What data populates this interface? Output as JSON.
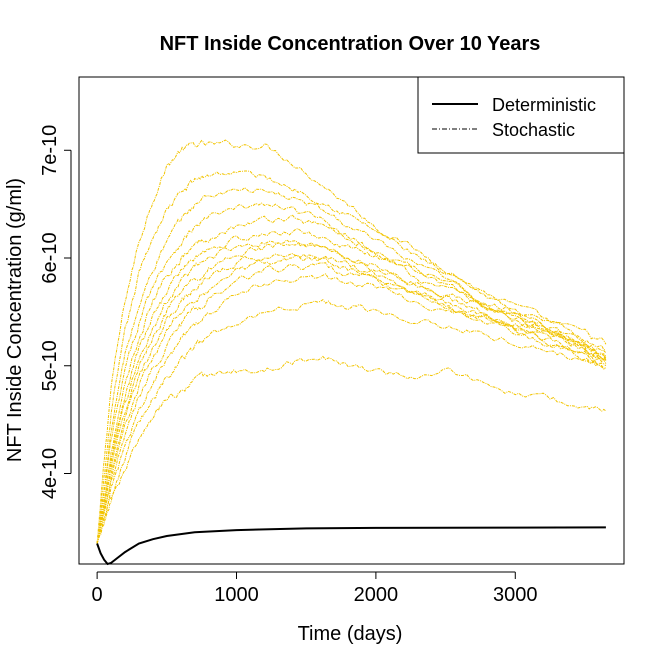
{
  "chart_data": {
    "type": "line",
    "title": "NFT Inside Concentration Over 10 Years",
    "xlabel": "Time (days)",
    "ylabel": "NFT Inside Concentration (g/ml)",
    "xlim": [
      -130,
      3780
    ],
    "ylim": [
      3.16e-10,
      7.68e-10
    ],
    "x_ticks": [
      0,
      1000,
      2000,
      3000
    ],
    "x_tick_labels": [
      "0",
      "1000",
      "2000",
      "3000"
    ],
    "y_ticks": [
      4e-10,
      5e-10,
      6e-10,
      7e-10
    ],
    "y_tick_labels": [
      "4e-10",
      "5e-10",
      "6e-10",
      "7e-10"
    ],
    "grid": false,
    "legend": {
      "placement": "top-right",
      "entries": [
        {
          "label": "Deterministic",
          "style": "solid",
          "color": "#000000"
        },
        {
          "label": "Stochastic",
          "style": "dot-dash",
          "color": "#000000"
        }
      ]
    },
    "colors": {
      "deterministic": "#000000",
      "stochastic": "#F2C400"
    },
    "deterministic": {
      "x": [
        0,
        25,
        50,
        75,
        100,
        150,
        200,
        300,
        400,
        500,
        700,
        1000,
        1500,
        2000,
        2500,
        3000,
        3650
      ],
      "y": [
        3.35e-10,
        3.26e-10,
        3.2e-10,
        3.16e-10,
        3.17e-10,
        3.22e-10,
        3.27e-10,
        3.35e-10,
        3.39e-10,
        3.42e-10,
        3.455e-10,
        3.475e-10,
        3.49e-10,
        3.495e-10,
        3.497e-10,
        3.498e-10,
        3.5e-10
      ]
    },
    "stochastic_series_x": [
      0,
      50,
      100,
      200,
      300,
      400,
      500,
      600,
      700,
      800,
      1000,
      1200,
      1400,
      1600,
      1800,
      2000,
      2250,
      2500,
      2750,
      3000,
      3250,
      3500,
      3650
    ],
    "stochastic_series": [
      {
        "values": [
          3.35e-10,
          4.1e-10,
          4.8e-10,
          5.6e-10,
          6.15e-10,
          6.55e-10,
          6.85e-10,
          7e-10,
          7.05e-10,
          7.05e-10,
          7.05e-10,
          7.05e-10,
          6.9e-10,
          6.7e-10,
          6.5e-10,
          6.3e-10,
          6.1e-10,
          5.9e-10,
          5.7e-10,
          5.55e-10,
          5.4e-10,
          5.3e-10,
          5.2e-10
        ]
      },
      {
        "values": [
          3.35e-10,
          3.95e-10,
          4.55e-10,
          5.3e-10,
          5.85e-10,
          6.2e-10,
          6.45e-10,
          6.6e-10,
          6.72e-10,
          6.78e-10,
          6.8e-10,
          6.75e-10,
          6.65e-10,
          6.55e-10,
          6.4e-10,
          6.25e-10,
          6.05e-10,
          5.85e-10,
          5.65e-10,
          5.5e-10,
          5.35e-10,
          5.2e-10,
          5.1e-10
        ]
      },
      {
        "values": [
          3.35e-10,
          3.85e-10,
          4.4e-10,
          5.1e-10,
          5.55e-10,
          5.9e-10,
          6.15e-10,
          6.35e-10,
          6.5e-10,
          6.58e-10,
          6.65e-10,
          6.62e-10,
          6.55e-10,
          6.45e-10,
          6.3e-10,
          6.15e-10,
          5.95e-10,
          5.8e-10,
          5.6e-10,
          5.45e-10,
          5.3e-10,
          5.15e-10,
          5.05e-10
        ]
      },
      {
        "values": [
          3.35e-10,
          3.8e-10,
          4.3e-10,
          4.95e-10,
          5.4e-10,
          5.75e-10,
          5.98e-10,
          6.15e-10,
          6.28e-10,
          6.38e-10,
          6.45e-10,
          6.5e-10,
          6.45e-10,
          6.35e-10,
          6.2e-10,
          6.05e-10,
          5.9e-10,
          5.75e-10,
          5.6e-10,
          5.45e-10,
          5.3e-10,
          5.2e-10,
          5.1e-10
        ]
      },
      {
        "values": [
          3.35e-10,
          3.75e-10,
          4.2e-10,
          4.8e-10,
          5.25e-10,
          5.6e-10,
          5.85e-10,
          6e-10,
          6.12e-10,
          6.2e-10,
          6.3e-10,
          6.35e-10,
          6.38e-10,
          6.3e-10,
          6.2e-10,
          6.05e-10,
          5.9e-10,
          5.78e-10,
          5.62e-10,
          5.5e-10,
          5.38e-10,
          5.25e-10,
          5.15e-10
        ]
      },
      {
        "values": [
          3.35e-10,
          3.72e-10,
          4.15e-10,
          4.7e-10,
          5.15e-10,
          5.45e-10,
          5.7e-10,
          5.88e-10,
          6e-10,
          6.08e-10,
          6.18e-10,
          6.2e-10,
          6.25e-10,
          6.2e-10,
          6.1e-10,
          6e-10,
          5.85e-10,
          5.7e-10,
          5.58e-10,
          5.45e-10,
          5.35e-10,
          5.22e-10,
          5.12e-10
        ]
      },
      {
        "values": [
          3.35e-10,
          3.7e-10,
          4.1e-10,
          4.65e-10,
          5.05e-10,
          5.35e-10,
          5.6e-10,
          5.78e-10,
          5.9e-10,
          6e-10,
          6.12e-10,
          6.15e-10,
          6.15e-10,
          6.1e-10,
          6e-10,
          5.9e-10,
          5.8e-10,
          5.65e-10,
          5.55e-10,
          5.42e-10,
          5.3e-10,
          5.2e-10,
          5.08e-10
        ]
      },
      {
        "values": [
          3.35e-10,
          3.68e-10,
          4.05e-10,
          4.58e-10,
          4.98e-10,
          5.28e-10,
          5.5e-10,
          5.68e-10,
          5.8e-10,
          5.9e-10,
          6.05e-10,
          6.1e-10,
          6.12e-10,
          6.1e-10,
          6.02e-10,
          5.92e-10,
          5.78e-10,
          5.64e-10,
          5.5e-10,
          5.4e-10,
          5.28e-10,
          5.15e-10,
          5.05e-10
        ]
      },
      {
        "values": [
          3.35e-10,
          3.66e-10,
          4e-10,
          4.5e-10,
          4.9e-10,
          5.18e-10,
          5.42e-10,
          5.6e-10,
          5.72e-10,
          5.82e-10,
          5.95e-10,
          6.02e-10,
          6.05e-10,
          6.02e-10,
          5.95e-10,
          5.85e-10,
          5.72e-10,
          5.6e-10,
          5.48e-10,
          5.35e-10,
          5.22e-10,
          5.1e-10,
          5e-10
        ]
      },
      {
        "values": [
          3.35e-10,
          3.64e-10,
          3.95e-10,
          4.42e-10,
          4.8e-10,
          5.08e-10,
          5.32e-10,
          5.5e-10,
          5.62e-10,
          5.72e-10,
          5.88e-10,
          5.95e-10,
          6e-10,
          5.98e-10,
          5.9e-10,
          5.8e-10,
          5.68e-10,
          5.55e-10,
          5.45e-10,
          5.32e-10,
          5.2e-10,
          5.08e-10,
          4.98e-10
        ]
      },
      {
        "values": [
          3.35e-10,
          3.62e-10,
          3.9e-10,
          4.35e-10,
          4.7e-10,
          4.98e-10,
          5.2e-10,
          5.38e-10,
          5.52e-10,
          5.62e-10,
          5.78e-10,
          5.88e-10,
          5.92e-10,
          5.92e-10,
          5.85e-10,
          5.78e-10,
          5.68e-10,
          5.55e-10,
          5.45e-10,
          5.35e-10,
          5.25e-10,
          5.15e-10,
          5.05e-10
        ]
      },
      {
        "values": [
          3.35e-10,
          3.6e-10,
          3.85e-10,
          4.25e-10,
          4.58e-10,
          4.85e-10,
          5.08e-10,
          5.25e-10,
          5.4e-10,
          5.5e-10,
          5.65e-10,
          5.75e-10,
          5.8e-10,
          5.82e-10,
          5.78e-10,
          5.72e-10,
          5.62e-10,
          5.52e-10,
          5.42e-10,
          5.32e-10,
          5.22e-10,
          5.12e-10,
          5.02e-10
        ]
      },
      {
        "values": [
          3.35e-10,
          3.58e-10,
          3.8e-10,
          4.15e-10,
          4.45e-10,
          4.7e-10,
          4.9e-10,
          5.05e-10,
          5.18e-10,
          5.28e-10,
          5.42e-10,
          5.5e-10,
          5.55e-10,
          5.6e-10,
          5.55e-10,
          5.52e-10,
          5.45e-10,
          5.38e-10,
          5.3e-10,
          5.22e-10,
          5.15e-10,
          5.05e-10,
          4.98e-10
        ]
      },
      {
        "values": [
          3.35e-10,
          3.55e-10,
          3.75e-10,
          4.05e-10,
          4.3e-10,
          4.52e-10,
          4.68e-10,
          4.78e-10,
          4.85e-10,
          4.9e-10,
          4.95e-10,
          4.98e-10,
          5.02e-10,
          5.1e-10,
          5e-10,
          4.95e-10,
          4.9e-10,
          4.98e-10,
          4.85e-10,
          4.75e-10,
          4.68e-10,
          4.62e-10,
          4.58e-10
        ]
      }
    ]
  }
}
